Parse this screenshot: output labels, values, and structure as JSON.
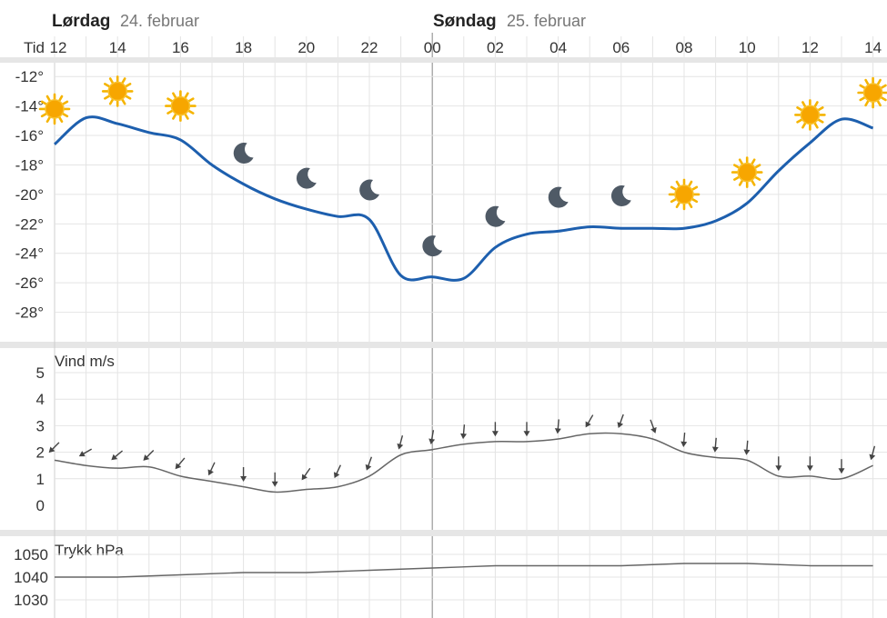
{
  "header": {
    "tid_label": "Tid",
    "days": [
      {
        "name": "Lørdag",
        "date": "24. februar"
      },
      {
        "name": "Søndag",
        "date": "25. februar"
      }
    ],
    "hour_labels": [
      "12",
      "14",
      "16",
      "18",
      "20",
      "22",
      "00",
      "02",
      "04",
      "06",
      "08",
      "10",
      "12",
      "14"
    ]
  },
  "chart_data": [
    {
      "type": "line",
      "panel": "temperature",
      "x_hours": [
        12,
        13,
        14,
        15,
        16,
        17,
        18,
        19,
        20,
        21,
        22,
        23,
        24,
        25,
        26,
        27,
        28,
        29,
        30,
        31,
        32,
        33,
        34,
        35,
        36,
        37,
        38
      ],
      "x_tick_labels": [
        "12",
        "14",
        "16",
        "18",
        "20",
        "22",
        "00",
        "02",
        "04",
        "06",
        "08",
        "10",
        "12",
        "14"
      ],
      "y_tick_labels": [
        "-12°",
        "-14°",
        "-16°",
        "-18°",
        "-20°",
        "-22°",
        "-24°",
        "-26°",
        "-28°"
      ],
      "y_ticks": [
        -12,
        -14,
        -16,
        -18,
        -20,
        -22,
        -24,
        -26,
        -28
      ],
      "ylim": [
        -30,
        -11
      ],
      "line_color": "#1d5fae",
      "series": [
        {
          "values": [
            -16.6,
            -14.8,
            -15.2,
            -15.8,
            -16.3,
            -18.0,
            -19.3,
            -20.3,
            -21.0,
            -21.5,
            -21.7,
            -25.5,
            -25.6,
            -25.7,
            -23.6,
            -22.7,
            -22.5,
            -22.2,
            -22.3,
            -22.3,
            -22.3,
            -21.8,
            -20.6,
            -18.4,
            -16.5,
            -14.9,
            -15.5
          ]
        }
      ],
      "weather_symbols": [
        {
          "hour": 12,
          "symbol": "sun",
          "value": -14.2
        },
        {
          "hour": 14,
          "symbol": "sun",
          "value": -13.0
        },
        {
          "hour": 16,
          "symbol": "sun",
          "value": -14.0
        },
        {
          "hour": 18,
          "symbol": "moon",
          "value": -17.2
        },
        {
          "hour": 20,
          "symbol": "moon",
          "value": -18.9
        },
        {
          "hour": 22,
          "symbol": "moon",
          "value": -19.7
        },
        {
          "hour": 24,
          "symbol": "moon",
          "value": -23.5
        },
        {
          "hour": 26,
          "symbol": "moon",
          "value": -21.5
        },
        {
          "hour": 28,
          "symbol": "moon",
          "value": -20.2
        },
        {
          "hour": 30,
          "symbol": "moon",
          "value": -20.1
        },
        {
          "hour": 32,
          "symbol": "sun",
          "value": -20.0
        },
        {
          "hour": 34,
          "symbol": "sun",
          "value": -18.5
        },
        {
          "hour": 36,
          "symbol": "sun",
          "value": -14.6
        },
        {
          "hour": 38,
          "symbol": "sun",
          "value": -13.1
        }
      ]
    },
    {
      "type": "line",
      "panel": "wind",
      "title": "Vind m/s",
      "y_ticks": [
        5,
        4,
        3,
        2,
        1,
        0
      ],
      "y_tick_labels": [
        "5",
        "4",
        "3",
        "2",
        "1",
        "0"
      ],
      "ylim": [
        0,
        5
      ],
      "line_color": "#666666",
      "x_hours": [
        12,
        13,
        14,
        15,
        16,
        17,
        18,
        19,
        20,
        21,
        22,
        23,
        24,
        25,
        26,
        27,
        28,
        29,
        30,
        31,
        32,
        33,
        34,
        35,
        36,
        37,
        38
      ],
      "series": [
        {
          "values": [
            1.7,
            1.5,
            1.4,
            1.45,
            1.1,
            0.9,
            0.7,
            0.5,
            0.6,
            0.7,
            1.1,
            1.9,
            2.1,
            2.3,
            2.4,
            2.4,
            2.5,
            2.7,
            2.7,
            2.5,
            2.0,
            1.8,
            1.7,
            1.1,
            1.1,
            1.0,
            1.5
          ]
        }
      ],
      "arrows": [
        {
          "hour": 12,
          "direction_deg": 45,
          "value": 2.2
        },
        {
          "hour": 13,
          "direction_deg": 60,
          "value": 2.0
        },
        {
          "hour": 14,
          "direction_deg": 50,
          "value": 1.9
        },
        {
          "hour": 15,
          "direction_deg": 45,
          "value": 1.9
        },
        {
          "hour": 16,
          "direction_deg": 40,
          "value": 1.6
        },
        {
          "hour": 17,
          "direction_deg": 25,
          "value": 1.4
        },
        {
          "hour": 18,
          "direction_deg": 0,
          "value": 1.2
        },
        {
          "hour": 19,
          "direction_deg": 0,
          "value": 1.0
        },
        {
          "hour": 20,
          "direction_deg": 35,
          "value": 1.2
        },
        {
          "hour": 21,
          "direction_deg": 25,
          "value": 1.3
        },
        {
          "hour": 22,
          "direction_deg": 20,
          "value": 1.6
        },
        {
          "hour": 23,
          "direction_deg": 15,
          "value": 2.4
        },
        {
          "hour": 24,
          "direction_deg": 10,
          "value": 2.6
        },
        {
          "hour": 25,
          "direction_deg": 5,
          "value": 2.8
        },
        {
          "hour": 26,
          "direction_deg": 0,
          "value": 2.9
        },
        {
          "hour": 27,
          "direction_deg": 0,
          "value": 2.9
        },
        {
          "hour": 28,
          "direction_deg": 5,
          "value": 3.0
        },
        {
          "hour": 29,
          "direction_deg": 30,
          "value": 3.2
        },
        {
          "hour": 30,
          "direction_deg": 20,
          "value": 3.2
        },
        {
          "hour": 31,
          "direction_deg": -20,
          "value": 3.0
        },
        {
          "hour": 32,
          "direction_deg": 5,
          "value": 2.5
        },
        {
          "hour": 33,
          "direction_deg": 5,
          "value": 2.3
        },
        {
          "hour": 34,
          "direction_deg": 5,
          "value": 2.2
        },
        {
          "hour": 35,
          "direction_deg": 0,
          "value": 1.6
        },
        {
          "hour": 36,
          "direction_deg": 0,
          "value": 1.6
        },
        {
          "hour": 37,
          "direction_deg": 0,
          "value": 1.5
        },
        {
          "hour": 38,
          "direction_deg": 15,
          "value": 2.0
        }
      ]
    },
    {
      "type": "line",
      "panel": "pressure",
      "title": "Trykk hPa",
      "y_ticks": [
        1050,
        1040,
        1030
      ],
      "y_tick_labels": [
        "1050",
        "1040",
        "1030"
      ],
      "ylim": [
        1022,
        1058
      ],
      "line_color": "#666666",
      "x_hours": [
        12,
        14,
        16,
        18,
        20,
        22,
        24,
        26,
        28,
        30,
        32,
        34,
        36,
        38
      ],
      "series": [
        {
          "values": [
            1040,
            1040,
            1041,
            1042,
            1042,
            1043,
            1044,
            1045,
            1045,
            1045,
            1046,
            1046,
            1045,
            1045
          ]
        }
      ]
    }
  ]
}
